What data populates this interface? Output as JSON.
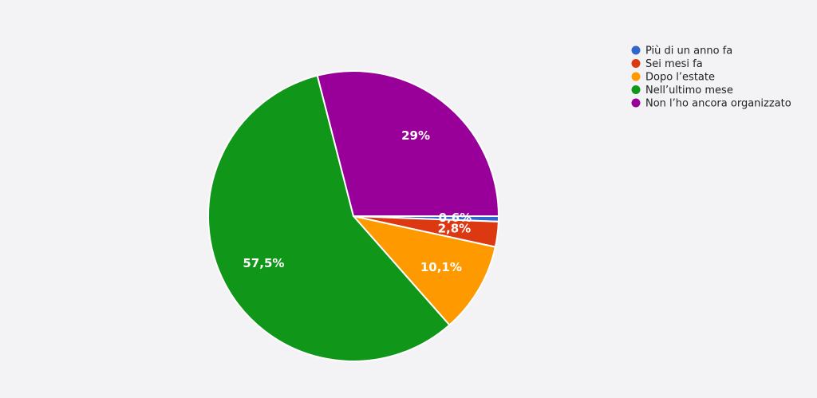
{
  "chart_data": {
    "type": "pie",
    "categories": [
      "Più di un anno fa",
      "Sei mesi fa",
      "Dopo l’estate",
      "Nell’ultimo mese",
      "Non l’ho ancora organizzato"
    ],
    "values": [
      0.6,
      2.8,
      10.1,
      57.5,
      29
    ],
    "value_labels": [
      "0,6%",
      "2,8%",
      "10,1%",
      "57,5%",
      "29%"
    ],
    "colors": [
      "#3366cc",
      "#dc3912",
      "#ff9900",
      "#109618",
      "#990099"
    ],
    "legend": "top-right"
  }
}
